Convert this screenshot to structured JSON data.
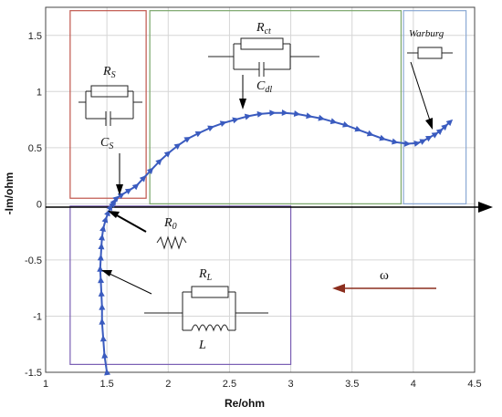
{
  "chart_data": {
    "type": "line",
    "title": "",
    "xlabel": "Re/ohm",
    "ylabel": "-Im/ohm",
    "xlim": [
      1,
      4.5
    ],
    "ylim": [
      -1.5,
      1.75
    ],
    "grid": true,
    "x_ticks": [
      "1",
      "1.5",
      "2",
      "2.5",
      "3",
      "3.5",
      "4",
      "4.5"
    ],
    "y_ticks": [
      "1.5",
      "1",
      "0.5",
      "0",
      "-0.5",
      "-1",
      "-1.5"
    ],
    "series": [
      {
        "marker": "triangle-right",
        "color": "#3a5bbf",
        "points": [
          [
            1.5,
            -1.5
          ],
          [
            1.48,
            -1.35
          ],
          [
            1.47,
            -1.2
          ],
          [
            1.46,
            -1.05
          ],
          [
            1.46,
            -0.92
          ],
          [
            1.455,
            -0.8
          ],
          [
            1.45,
            -0.68
          ],
          [
            1.445,
            -0.58
          ],
          [
            1.45,
            -0.48
          ],
          [
            1.455,
            -0.38
          ],
          [
            1.46,
            -0.3
          ],
          [
            1.47,
            -0.22
          ],
          [
            1.49,
            -0.14
          ],
          [
            1.51,
            -0.08
          ],
          [
            1.53,
            -0.03
          ],
          [
            1.55,
            0.0
          ],
          [
            1.56,
            0.02
          ],
          [
            1.58,
            0.05
          ],
          [
            1.62,
            0.08
          ],
          [
            1.68,
            0.12
          ],
          [
            1.74,
            0.16
          ],
          [
            1.8,
            0.23
          ],
          [
            1.86,
            0.3
          ],
          [
            1.93,
            0.38
          ],
          [
            2.0,
            0.45
          ],
          [
            2.08,
            0.52
          ],
          [
            2.16,
            0.58
          ],
          [
            2.25,
            0.63
          ],
          [
            2.35,
            0.68
          ],
          [
            2.45,
            0.72
          ],
          [
            2.55,
            0.75
          ],
          [
            2.65,
            0.78
          ],
          [
            2.75,
            0.8
          ],
          [
            2.85,
            0.81
          ],
          [
            2.95,
            0.81
          ],
          [
            3.05,
            0.8
          ],
          [
            3.15,
            0.78
          ],
          [
            3.25,
            0.76
          ],
          [
            3.35,
            0.73
          ],
          [
            3.45,
            0.7
          ],
          [
            3.55,
            0.66
          ],
          [
            3.65,
            0.62
          ],
          [
            3.75,
            0.58
          ],
          [
            3.85,
            0.55
          ],
          [
            3.95,
            0.535
          ],
          [
            4.03,
            0.54
          ],
          [
            4.08,
            0.56
          ],
          [
            4.13,
            0.59
          ],
          [
            4.18,
            0.62
          ],
          [
            4.22,
            0.65
          ],
          [
            4.26,
            0.69
          ],
          [
            4.3,
            0.73
          ]
        ]
      }
    ],
    "annotations": {
      "rs_cs": {
        "r_label": "R",
        "r_sub": "S",
        "c_label": "C",
        "c_sub": "S",
        "region": [
          1.2,
          1.82,
          0.05,
          1.72
        ],
        "color": "#c0564c"
      },
      "rct_cdl": {
        "r_label": "R",
        "r_sub": "ct",
        "c_label": "C",
        "c_sub": "dl",
        "region": [
          1.85,
          3.9,
          0.0,
          1.72
        ],
        "color": "#7aa76a"
      },
      "warburg": {
        "label": "Warburg",
        "region": [
          3.92,
          4.43,
          0.0,
          1.72
        ],
        "color": "#8aa8d4"
      },
      "r0": {
        "label": "R",
        "sub": "0"
      },
      "rl_l": {
        "r_label": "R",
        "r_sub": "L",
        "l_label": "L",
        "region": [
          1.2,
          3.0,
          -1.43,
          -0.02
        ],
        "color": "#7b5fb4"
      },
      "omega": {
        "label": "ω",
        "arrow_color": "#8b2e1e"
      }
    }
  }
}
